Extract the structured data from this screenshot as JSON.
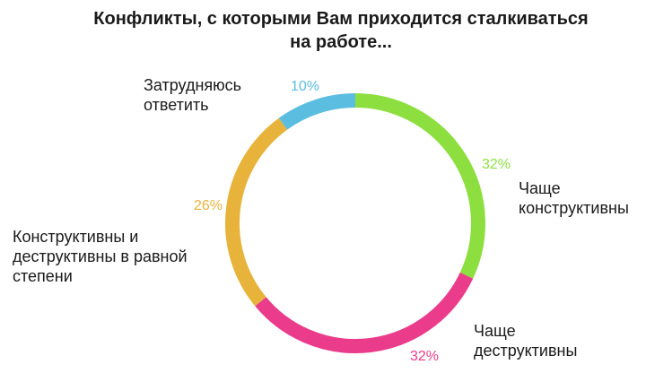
{
  "chart_data": {
    "type": "pie",
    "style": "ring",
    "title_lines": [
      "Конфликты, с которыми Вам приходится сталкиваться",
      "на работе..."
    ],
    "slices": [
      {
        "label_lines": [
          "Чаще",
          "конструктивны"
        ],
        "value": 32,
        "value_label": "32%",
        "color": "#8ddf3f"
      },
      {
        "label_lines": [
          "Чаще",
          "деструктивны"
        ],
        "value": 32,
        "value_label": "32%",
        "color": "#ea3c8a"
      },
      {
        "label_lines": [
          "Конструктивны и",
          "деструктивны в равной",
          "степени"
        ],
        "value": 26,
        "value_label": "26%",
        "color": "#e8b33a"
      },
      {
        "label_lines": [
          "Затрудняюсь",
          "ответить"
        ],
        "value": 10,
        "value_label": "10%",
        "color": "#5bbde0"
      }
    ]
  }
}
